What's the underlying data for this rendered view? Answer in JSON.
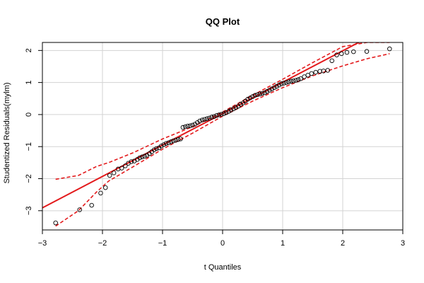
{
  "chart_data": {
    "type": "scatter",
    "title": "QQ Plot",
    "xlabel": "t Quantiles",
    "ylabel": "Studentized Residuals(mylm)",
    "xlim": [
      -3,
      3
    ],
    "ylim": [
      -3.6,
      2.25
    ],
    "xticks": [
      -3,
      -2,
      -1,
      0,
      1,
      2,
      3
    ],
    "yticks": [
      -3,
      -2,
      -1,
      0,
      1,
      2
    ],
    "grid": true,
    "colors": {
      "points": "#000000",
      "reference_line": "#e31a1c",
      "envelope": "#e31a1c",
      "grid": "#d3d3d3"
    },
    "reference_line": {
      "intercept": 0.03,
      "slope": 0.98
    },
    "envelope": {
      "x": [
        -2.78,
        -2.4,
        -2.1,
        -1.9,
        -1.5,
        -1.0,
        -0.5,
        0.0,
        0.5,
        1.0,
        1.5,
        2.0,
        2.4,
        2.78
      ],
      "lower": [
        -3.48,
        -3.0,
        -2.42,
        -2.08,
        -1.64,
        -1.08,
        -0.58,
        -0.05,
        0.42,
        0.84,
        1.21,
        1.52,
        1.74,
        1.9
      ],
      "upper": [
        -2.02,
        -1.9,
        -1.62,
        -1.5,
        -1.2,
        -0.76,
        -0.38,
        0.08,
        0.6,
        1.1,
        1.62,
        2.12,
        2.25,
        2.25
      ]
    },
    "points": {
      "x": [
        -2.78,
        -2.38,
        -2.18,
        -2.03,
        -1.95,
        -1.88,
        -1.81,
        -1.74,
        -1.68,
        -1.62,
        -1.57,
        -1.52,
        -1.47,
        -1.42,
        -1.38,
        -1.34,
        -1.3,
        -1.26,
        -1.22,
        -1.18,
        -1.14,
        -1.1,
        -1.06,
        -1.02,
        -0.98,
        -0.94,
        -0.9,
        -0.86,
        -0.82,
        -0.78,
        -0.74,
        -0.7,
        -0.66,
        -0.62,
        -0.58,
        -0.54,
        -0.5,
        -0.46,
        -0.42,
        -0.38,
        -0.34,
        -0.3,
        -0.26,
        -0.22,
        -0.18,
        -0.14,
        -0.1,
        -0.06,
        -0.02,
        0.02,
        0.06,
        0.1,
        0.14,
        0.18,
        0.22,
        0.26,
        0.3,
        0.34,
        0.38,
        0.42,
        0.46,
        0.5,
        0.54,
        0.58,
        0.62,
        0.66,
        0.7,
        0.74,
        0.78,
        0.82,
        0.86,
        0.9,
        0.94,
        0.98,
        1.02,
        1.06,
        1.1,
        1.14,
        1.18,
        1.22,
        1.26,
        1.3,
        1.36,
        1.42,
        1.48,
        1.55,
        1.62,
        1.68,
        1.75,
        1.82,
        1.9,
        1.98,
        2.07,
        2.18,
        2.4,
        2.78
      ],
      "y": [
        -3.38,
        -2.97,
        -2.83,
        -2.45,
        -2.28,
        -1.9,
        -1.82,
        -1.7,
        -1.67,
        -1.6,
        -1.52,
        -1.47,
        -1.45,
        -1.4,
        -1.35,
        -1.32,
        -1.3,
        -1.27,
        -1.22,
        -1.16,
        -1.1,
        -1.06,
        -1.04,
        -0.98,
        -0.94,
        -0.9,
        -0.88,
        -0.85,
        -0.82,
        -0.8,
        -0.78,
        -0.76,
        -0.4,
        -0.38,
        -0.36,
        -0.35,
        -0.33,
        -0.3,
        -0.25,
        -0.2,
        -0.17,
        -0.15,
        -0.13,
        -0.11,
        -0.08,
        -0.06,
        -0.03,
        -0.01,
        0.01,
        0.03,
        0.06,
        0.1,
        0.14,
        0.18,
        0.22,
        0.26,
        0.32,
        0.36,
        0.42,
        0.48,
        0.52,
        0.56,
        0.6,
        0.62,
        0.64,
        0.66,
        0.68,
        0.72,
        0.76,
        0.8,
        0.84,
        0.88,
        0.92,
        0.96,
        0.98,
        1.0,
        1.02,
        1.04,
        1.05,
        1.07,
        1.09,
        1.12,
        1.18,
        1.23,
        1.28,
        1.32,
        1.35,
        1.36,
        1.38,
        1.68,
        1.86,
        1.9,
        1.94,
        1.96,
        1.97,
        2.05
      ]
    }
  }
}
